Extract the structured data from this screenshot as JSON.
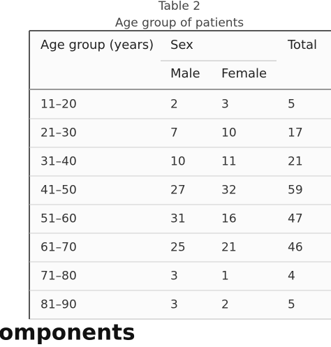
{
  "caption": {
    "label": "Table 2",
    "title": "Age group of patients"
  },
  "table": {
    "header": {
      "age_group": "Age group (years)",
      "sex": "Sex",
      "total": "Total",
      "male": "Male",
      "female": "Female"
    },
    "rows": [
      [
        "11–20",
        2,
        3,
        5
      ],
      [
        "21–30",
        7,
        10,
        17
      ],
      [
        "31–40",
        10,
        11,
        21
      ],
      [
        "41–50",
        27,
        32,
        59
      ],
      [
        "51–60",
        31,
        16,
        47
      ],
      [
        "61–70",
        25,
        21,
        46
      ],
      [
        "71–80",
        3,
        1,
        4
      ],
      [
        "81–90",
        3,
        2,
        5
      ]
    ]
  },
  "footer_text": "omponents"
}
